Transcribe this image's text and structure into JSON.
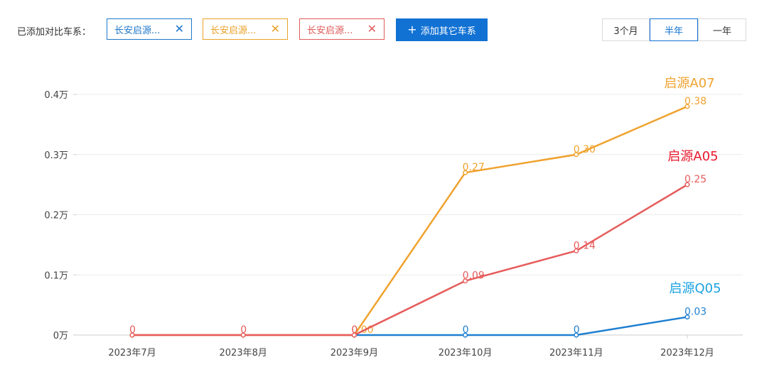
{
  "toolbar": {
    "label": "已添加对比车系：",
    "chips": [
      {
        "text": "长安启源...",
        "color": "#1e78c8"
      },
      {
        "text": "长安启源...",
        "color": "#e8a228"
      },
      {
        "text": "长安启源...",
        "color": "#e05a5a"
      }
    ],
    "close_glyph": "✕",
    "add_button": {
      "icon": "plus-icon",
      "label": "添加其它车系"
    },
    "range_options": [
      "3个月",
      "半年",
      "一年"
    ],
    "range_selected": "半年"
  },
  "chart_data": {
    "type": "line",
    "categories": [
      "2023年7月",
      "2023年8月",
      "2023年9月",
      "2023年10月",
      "2023年11月",
      "2023年12月"
    ],
    "y_ticks": [
      {
        "value": 0,
        "label": "0万"
      },
      {
        "value": 0.1,
        "label": "0.1万"
      },
      {
        "value": 0.2,
        "label": "0.2万"
      },
      {
        "value": 0.3,
        "label": "0.3万"
      },
      {
        "value": 0.4,
        "label": "0.4万"
      }
    ],
    "ylim": [
      0,
      0.4
    ],
    "grid": true,
    "series": [
      {
        "name": "启源A07",
        "color": "#f0a22e",
        "values": [
          0,
          0,
          0,
          0.27,
          0.3,
          0.38
        ],
        "labels": [
          "",
          "",
          "0.00",
          "0.27",
          "0.30",
          "0.38"
        ]
      },
      {
        "name": "启源A05",
        "color": "#e65c5c",
        "values": [
          0,
          0,
          0,
          0.09,
          0.14,
          0.25
        ],
        "labels": [
          "0",
          "0",
          "0",
          "0.09",
          "0.14",
          "0.25"
        ]
      },
      {
        "name": "启源Q05",
        "color": "#1f7fd0",
        "values": [
          null,
          null,
          0,
          0,
          0,
          0.03
        ],
        "labels": [
          "",
          "",
          "",
          "0",
          "0",
          "0.03"
        ]
      }
    ],
    "series_label_colors": [
      "#f0a22e",
      "#e8182c",
      "#1aa3e0"
    ]
  }
}
